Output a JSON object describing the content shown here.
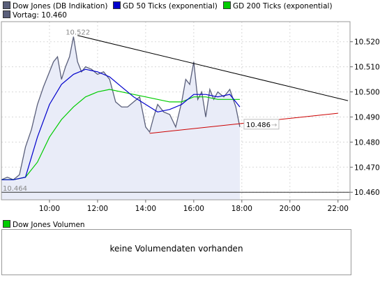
{
  "legend": {
    "items": [
      {
        "label": "Dow Jones (DB Indikation)",
        "color": "#5a5f7a"
      },
      {
        "label": "GD 50 Ticks (exponential)",
        "color": "#0000cc"
      },
      {
        "label": "GD 200 Ticks (exponential)",
        "color": "#00cc00"
      },
      {
        "label": "Vortag: 10.460",
        "color": "#5a5f7a"
      }
    ]
  },
  "volume": {
    "legend_label": "Dow Jones Volumen",
    "legend_color": "#00cc00",
    "message": "keine Volumendaten vorhanden"
  },
  "chart_data": {
    "type": "line",
    "x_ticks": [
      "10:00",
      "12:00",
      "14:00",
      "16:00",
      "18:00",
      "20:00",
      "22:00"
    ],
    "y_ticks": [
      "10.460",
      "10.470",
      "10.480",
      "10.490",
      "10.500",
      "10.510",
      "10.520"
    ],
    "x_range": [
      "08:00",
      "22:30"
    ],
    "ylim": [
      10.457,
      10.528
    ],
    "grid": true,
    "annotations": {
      "high": "10.522",
      "low": "10.464",
      "last": "10.486",
      "previous_close": 10.46
    },
    "series": [
      {
        "name": "Dow Jones (DB Indikation)",
        "color": "#5a5f7a",
        "x": [
          "08:00",
          "08:15",
          "08:30",
          "08:45",
          "09:00",
          "09:15",
          "09:30",
          "09:45",
          "10:00",
          "10:10",
          "10:20",
          "10:30",
          "10:40",
          "10:50",
          "11:00",
          "11:10",
          "11:20",
          "11:30",
          "11:45",
          "12:00",
          "12:15",
          "12:30",
          "12:45",
          "13:00",
          "13:15",
          "13:30",
          "13:45",
          "14:00",
          "14:10",
          "14:20",
          "14:30",
          "14:45",
          "15:00",
          "15:15",
          "15:30",
          "15:40",
          "15:50",
          "16:00",
          "16:10",
          "16:20",
          "16:30",
          "16:40",
          "16:50",
          "17:00",
          "17:15",
          "17:30",
          "17:45",
          "17:55"
        ],
        "values": [
          10.465,
          10.466,
          10.465,
          10.467,
          10.478,
          10.485,
          10.495,
          10.502,
          10.508,
          10.512,
          10.514,
          10.505,
          10.51,
          10.514,
          10.522,
          10.512,
          10.508,
          10.51,
          10.509,
          10.507,
          10.508,
          10.505,
          10.496,
          10.494,
          10.494,
          10.496,
          10.498,
          10.486,
          10.484,
          10.49,
          10.495,
          10.492,
          10.491,
          10.486,
          10.496,
          10.505,
          10.503,
          10.512,
          10.497,
          10.5,
          10.49,
          10.501,
          10.497,
          10.5,
          10.498,
          10.501,
          10.494,
          10.486
        ]
      },
      {
        "name": "GD 50 Ticks (exponential)",
        "color": "#0000cc",
        "x": [
          "08:00",
          "08:30",
          "09:00",
          "09:30",
          "10:00",
          "10:30",
          "11:00",
          "11:30",
          "12:00",
          "12:30",
          "13:00",
          "13:30",
          "14:00",
          "14:30",
          "15:00",
          "15:30",
          "16:00",
          "16:30",
          "17:00",
          "17:30",
          "17:55"
        ],
        "values": [
          10.465,
          10.465,
          10.466,
          10.482,
          10.495,
          10.503,
          10.507,
          10.509,
          10.508,
          10.506,
          10.502,
          10.498,
          10.495,
          10.492,
          10.493,
          10.495,
          10.499,
          10.499,
          10.498,
          10.499,
          10.494
        ]
      },
      {
        "name": "GD 200 Ticks (exponential)",
        "color": "#00cc00",
        "x": [
          "08:00",
          "08:30",
          "09:00",
          "09:30",
          "10:00",
          "10:30",
          "11:00",
          "11:30",
          "12:00",
          "12:30",
          "13:00",
          "13:30",
          "14:00",
          "14:30",
          "15:00",
          "15:30",
          "16:00",
          "16:30",
          "17:00",
          "17:30",
          "17:55"
        ],
        "values": [
          10.465,
          10.465,
          10.466,
          10.472,
          10.482,
          10.489,
          10.494,
          10.498,
          10.5,
          10.501,
          10.5,
          10.499,
          10.498,
          10.497,
          10.496,
          10.496,
          10.498,
          10.498,
          10.497,
          10.497,
          10.497
        ]
      }
    ],
    "trendlines": [
      {
        "color": "#000000",
        "from": [
          "11:10",
          10.5225
        ],
        "to": [
          "22:25",
          10.4965
        ]
      },
      {
        "color": "#cc0000",
        "from": [
          "14:10",
          10.4835
        ],
        "to": [
          "22:00",
          10.4915
        ]
      }
    ]
  }
}
